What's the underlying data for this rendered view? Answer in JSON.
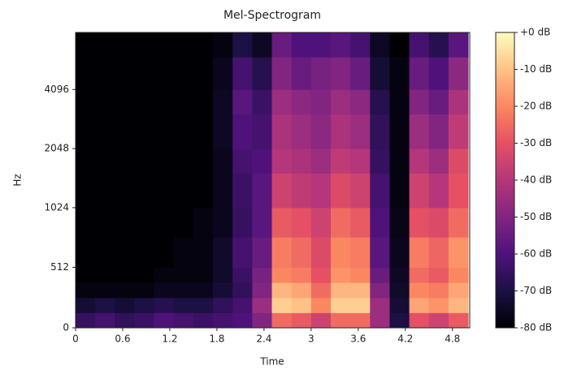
{
  "chart_data": {
    "type": "heatmap",
    "title": "Mel-Spectrogram",
    "x_label": "Time",
    "y_label": "Hz",
    "x": [
      0,
      0.25,
      0.5,
      0.75,
      1,
      1.25,
      1.5,
      1.75,
      2,
      2.25,
      2.5,
      2.75,
      3,
      3.25,
      3.5,
      3.75,
      4,
      4.25,
      4.5,
      4.75,
      5
    ],
    "y": [
      0,
      128,
      256,
      384,
      512,
      768,
      1024,
      1536,
      2048,
      3072,
      4096,
      6000,
      8000
    ],
    "values": [
      [
        -65,
        -62,
        -66,
        -64,
        -60,
        -62,
        -64,
        -62,
        -60,
        -50,
        -25,
        -28,
        -35,
        -25,
        -25,
        -45,
        -70,
        -30,
        -35,
        -28
      ],
      [
        -72,
        -70,
        -72,
        -70,
        -68,
        -70,
        -70,
        -66,
        -62,
        -45,
        -8,
        -10,
        -20,
        -8,
        -8,
        -45,
        -72,
        -15,
        -18,
        -12
      ],
      [
        -78,
        -78,
        -78,
        -78,
        -76,
        -76,
        -76,
        -72,
        -66,
        -50,
        -12,
        -15,
        -25,
        -12,
        -12,
        -50,
        -74,
        -20,
        -22,
        -15
      ],
      [
        -80,
        -80,
        -80,
        -80,
        -78,
        -78,
        -78,
        -74,
        -64,
        -52,
        -20,
        -22,
        -30,
        -18,
        -20,
        -55,
        -75,
        -25,
        -28,
        -20
      ],
      [
        -80,
        -80,
        -80,
        -80,
        -80,
        -78,
        -78,
        -74,
        -62,
        -55,
        -22,
        -25,
        -32,
        -20,
        -22,
        -58,
        -76,
        -22,
        -26,
        -18
      ],
      [
        -80,
        -80,
        -80,
        -80,
        -80,
        -80,
        -78,
        -76,
        -65,
        -58,
        -28,
        -30,
        -35,
        -25,
        -28,
        -60,
        -77,
        -30,
        -32,
        -25
      ],
      [
        -80,
        -80,
        -80,
        -80,
        -80,
        -80,
        -80,
        -76,
        -64,
        -58,
        -35,
        -38,
        -40,
        -32,
        -35,
        -62,
        -78,
        -35,
        -40,
        -30
      ],
      [
        -80,
        -80,
        -80,
        -80,
        -80,
        -80,
        -80,
        -76,
        -62,
        -60,
        -40,
        -42,
        -45,
        -38,
        -40,
        -65,
        -78,
        -40,
        -45,
        -32
      ],
      [
        -80,
        -80,
        -80,
        -80,
        -80,
        -80,
        -80,
        -75,
        -60,
        -62,
        -42,
        -45,
        -48,
        -42,
        -45,
        -66,
        -78,
        -45,
        -50,
        -38
      ],
      [
        -80,
        -80,
        -80,
        -80,
        -80,
        -80,
        -80,
        -75,
        -58,
        -64,
        -45,
        -48,
        -50,
        -45,
        -48,
        -68,
        -78,
        -50,
        -55,
        -42
      ],
      [
        -80,
        -80,
        -80,
        -80,
        -80,
        -80,
        -80,
        -76,
        -62,
        -68,
        -50,
        -55,
        -52,
        -50,
        -55,
        -72,
        -78,
        -55,
        -60,
        -48
      ],
      [
        -80,
        -80,
        -80,
        -80,
        -80,
        -80,
        -80,
        -78,
        -70,
        -75,
        -55,
        -60,
        -60,
        -58,
        -62,
        -75,
        -80,
        -62,
        -68,
        -58
      ]
    ],
    "xlim": [
      0,
      5.02
    ],
    "xticks": [
      0,
      0.6,
      1.2,
      1.8,
      2.4,
      3,
      3.6,
      4.2,
      4.8
    ],
    "ylim": [
      0,
      8000
    ],
    "yticks": [
      0,
      512,
      1024,
      2048,
      4096
    ],
    "yscale": {
      "type": "symlog",
      "base": 2,
      "linthresh": 1000,
      "linscale": 1
    },
    "colormap": [
      "#000004",
      "#1c1044",
      "#4f127b",
      "#812581",
      "#b5367a",
      "#e55064",
      "#fb8761",
      "#fec287",
      "#fcfdbf"
    ],
    "clim": [
      -80,
      0
    ],
    "cticks": [
      {
        "value": 0,
        "label": "+0 dB"
      },
      {
        "value": -10,
        "label": "-10 dB"
      },
      {
        "value": -20,
        "label": "-20 dB"
      },
      {
        "value": -30,
        "label": "-30 dB"
      },
      {
        "value": -40,
        "label": "-40 dB"
      },
      {
        "value": -50,
        "label": "-50 dB"
      },
      {
        "value": -60,
        "label": "-60 dB"
      },
      {
        "value": -70,
        "label": "-70 dB"
      },
      {
        "value": -80,
        "label": "-80 dB"
      }
    ]
  }
}
